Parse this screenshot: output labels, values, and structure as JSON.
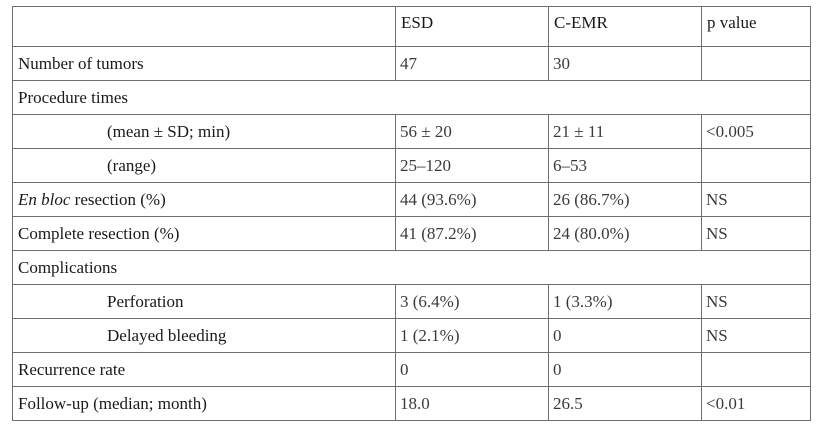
{
  "table": {
    "headers": {
      "label": "",
      "esd": "ESD",
      "cemr": "C-EMR",
      "p": "p value"
    },
    "rows": {
      "tumors": {
        "label": "Number of tumors",
        "esd": "47",
        "cemr": "30",
        "p": ""
      },
      "procedure_times": {
        "label": "Procedure times"
      },
      "mean": {
        "label": "(mean ± SD; min)",
        "esd": "56 ± 20",
        "cemr": "21 ± 11",
        "p": "<0.005"
      },
      "range": {
        "label": "(range)",
        "esd": "25–120",
        "cemr": "6–53",
        "p": ""
      },
      "en_bloc": {
        "label_italic": "En bloc",
        "label_rest": " resection (%)",
        "esd": "44 (93.6%)",
        "cemr": "26 (86.7%)",
        "p": "NS"
      },
      "complete": {
        "label": "Complete resection (%)",
        "esd": "41 (87.2%)",
        "cemr": "24 (80.0%)",
        "p": "NS"
      },
      "complications": {
        "label": "Complications"
      },
      "perforation": {
        "label": "Perforation",
        "esd": "3 (6.4%)",
        "cemr": "1 (3.3%)",
        "p": "NS"
      },
      "delayed_bleeding": {
        "label": "Delayed bleeding",
        "esd": "1 (2.1%)",
        "cemr": "0",
        "p": "NS"
      },
      "recurrence": {
        "label": "Recurrence rate",
        "esd": "0",
        "cemr": "0",
        "p": ""
      },
      "follow_up": {
        "label": "Follow-up (median; month)",
        "esd": "18.0",
        "cemr": "26.5",
        "p": "<0.01"
      }
    }
  }
}
